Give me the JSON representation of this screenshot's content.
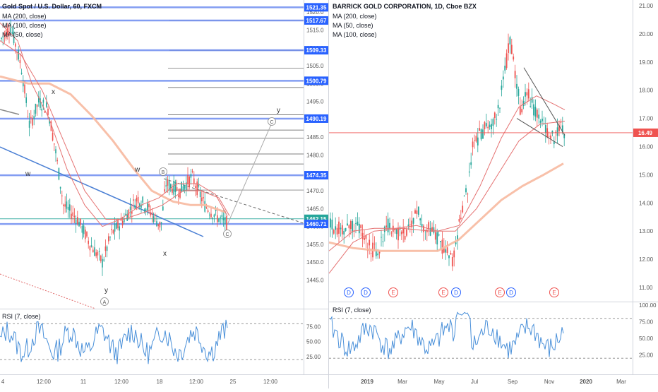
{
  "left_panel": {
    "title": "Gold Spot / U.S. Dollar, 60, FXCM",
    "indicators": [
      "MA (200, close)",
      "MA (100, close)",
      "MA (50, close)"
    ],
    "rsi_label": "RSI (7, close)"
  },
  "right_panel": {
    "title": "BARRICK GOLD CORPORATION, 1D, Cboe BZX",
    "indicators": [
      "MA (200, close)",
      "MA (50, close)",
      "MA (100, close)"
    ],
    "rsi_label": "RSI (7, close)"
  },
  "colors": {
    "candle_up": "#26a69a",
    "candle_down": "#ef5350",
    "ma_200": "#f7b9a0",
    "ma_fast": "#e57373",
    "level_line": "#2962ff",
    "rsi_line": "#4a90d9",
    "price_badge_red": "#ef5350",
    "price_badge_blue": "#2962ff"
  },
  "chart_data": [
    {
      "type": "line",
      "chart": "candlestick",
      "title": "Gold Spot / U.S. Dollar, 60, FXCM",
      "ylim": [
        1437,
        1523
      ],
      "y_ticks": [
        1445,
        1450,
        1455,
        1460,
        1465,
        1470,
        1475,
        1480,
        1485,
        1490,
        1495,
        1500,
        1505,
        1510,
        1515,
        1520
      ],
      "x_ticks": [
        "4",
        "12:00",
        "11",
        "12:00",
        "18",
        "12:00",
        "25",
        "12:00"
      ],
      "price_labels": [
        {
          "value": 1521.35,
          "text": "1521.35"
        },
        {
          "value": 1517.67,
          "text": "1517.67"
        },
        {
          "value": 1509.33,
          "text": "1509.33"
        },
        {
          "value": 1500.79,
          "text": "1500.79"
        },
        {
          "value": 1490.19,
          "text": "1490.19"
        },
        {
          "value": 1474.35,
          "text": "1474.35"
        },
        {
          "value": 1462.15,
          "text": "1462.15"
        },
        {
          "value": 1460.71,
          "text": "1460.71"
        }
      ],
      "wave_labels": [
        "w",
        "x",
        "w",
        "x",
        "y",
        "y",
        "A",
        "B",
        "C"
      ],
      "series": [
        {
          "name": "MA (200, close)"
        },
        {
          "name": "MA (100, close)"
        },
        {
          "name": "MA (50, close)"
        }
      ],
      "rsi": {
        "label": "RSI (7, close)",
        "levels": [
          80,
          20
        ],
        "ticks": [
          75,
          50,
          25
        ]
      }
    },
    {
      "type": "line",
      "chart": "candlestick",
      "title": "BARRICK GOLD CORPORATION, 1D, Cboe BZX",
      "ylim": [
        10.5,
        21.15
      ],
      "y_ticks": [
        11,
        12,
        13,
        14,
        15,
        16,
        17,
        18,
        19,
        20,
        21
      ],
      "x_ticks": [
        "2019",
        "Mar",
        "May",
        "Jul",
        "Sep",
        "Nov",
        "2020",
        "Mar"
      ],
      "last_price": 16.49,
      "last_price_text": "16.49",
      "events": [
        "D",
        "D",
        "E",
        "E",
        "D",
        "E",
        "D",
        "E"
      ],
      "series": [
        {
          "name": "MA (200, close)"
        },
        {
          "name": "MA (50, close)"
        },
        {
          "name": "MA (100, close)"
        }
      ],
      "rsi": {
        "label": "RSI (7, close)",
        "levels": [
          80,
          20
        ],
        "ticks": [
          100,
          75,
          50,
          25
        ]
      }
    }
  ]
}
